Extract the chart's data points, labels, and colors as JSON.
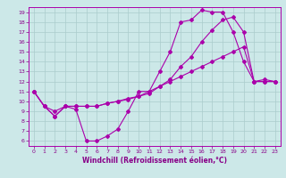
{
  "title": "",
  "xlabel": "Windchill (Refroidissement éolien,°C)",
  "bg_color": "#cce8e8",
  "line_color": "#aa00aa",
  "grid_color": "#aacccc",
  "xlim": [
    -0.5,
    23.5
  ],
  "ylim": [
    5.5,
    19.5
  ],
  "xticks": [
    0,
    1,
    2,
    3,
    4,
    5,
    6,
    7,
    8,
    9,
    10,
    11,
    12,
    13,
    14,
    15,
    16,
    17,
    18,
    19,
    20,
    21,
    22,
    23
  ],
  "yticks": [
    6,
    7,
    8,
    9,
    10,
    11,
    12,
    13,
    14,
    15,
    16,
    17,
    18,
    19
  ],
  "line1_x": [
    0,
    1,
    2,
    3,
    4,
    5,
    6,
    7,
    8,
    9,
    10,
    11,
    12,
    13,
    14,
    15,
    16,
    17,
    18,
    19,
    20,
    21,
    22,
    23
  ],
  "line1_y": [
    11,
    9.5,
    8.5,
    9.5,
    9.2,
    6.0,
    6.0,
    6.5,
    7.2,
    9.0,
    11.0,
    11.0,
    13.0,
    15.0,
    18.0,
    18.2,
    19.2,
    19.0,
    19.0,
    17.0,
    14.0,
    12.0,
    12.2,
    12.0
  ],
  "line2_x": [
    0,
    1,
    2,
    3,
    4,
    5,
    6,
    7,
    8,
    9,
    10,
    11,
    12,
    13,
    14,
    15,
    16,
    17,
    18,
    19,
    20,
    21,
    22,
    23
  ],
  "line2_y": [
    11,
    9.5,
    8.5,
    9.5,
    9.5,
    9.5,
    9.5,
    9.8,
    10.0,
    10.2,
    10.5,
    10.8,
    11.5,
    12.2,
    13.5,
    14.5,
    16.0,
    17.2,
    18.2,
    18.5,
    17.0,
    12.0,
    12.0,
    12.0
  ],
  "line3_x": [
    0,
    1,
    2,
    3,
    4,
    5,
    6,
    7,
    8,
    9,
    10,
    11,
    12,
    13,
    14,
    15,
    16,
    17,
    18,
    19,
    20,
    21,
    22,
    23
  ],
  "line3_y": [
    11,
    9.5,
    9.0,
    9.5,
    9.5,
    9.5,
    9.5,
    9.8,
    10.0,
    10.3,
    10.5,
    11.0,
    11.5,
    12.0,
    12.5,
    13.0,
    13.5,
    14.0,
    14.5,
    15.0,
    15.5,
    12.0,
    12.0,
    12.0
  ],
  "tick_fontsize": 4.5,
  "xlabel_fontsize": 5.5,
  "tick_color": "#880088",
  "spine_color": "#aa00aa",
  "marker_size": 2.0
}
